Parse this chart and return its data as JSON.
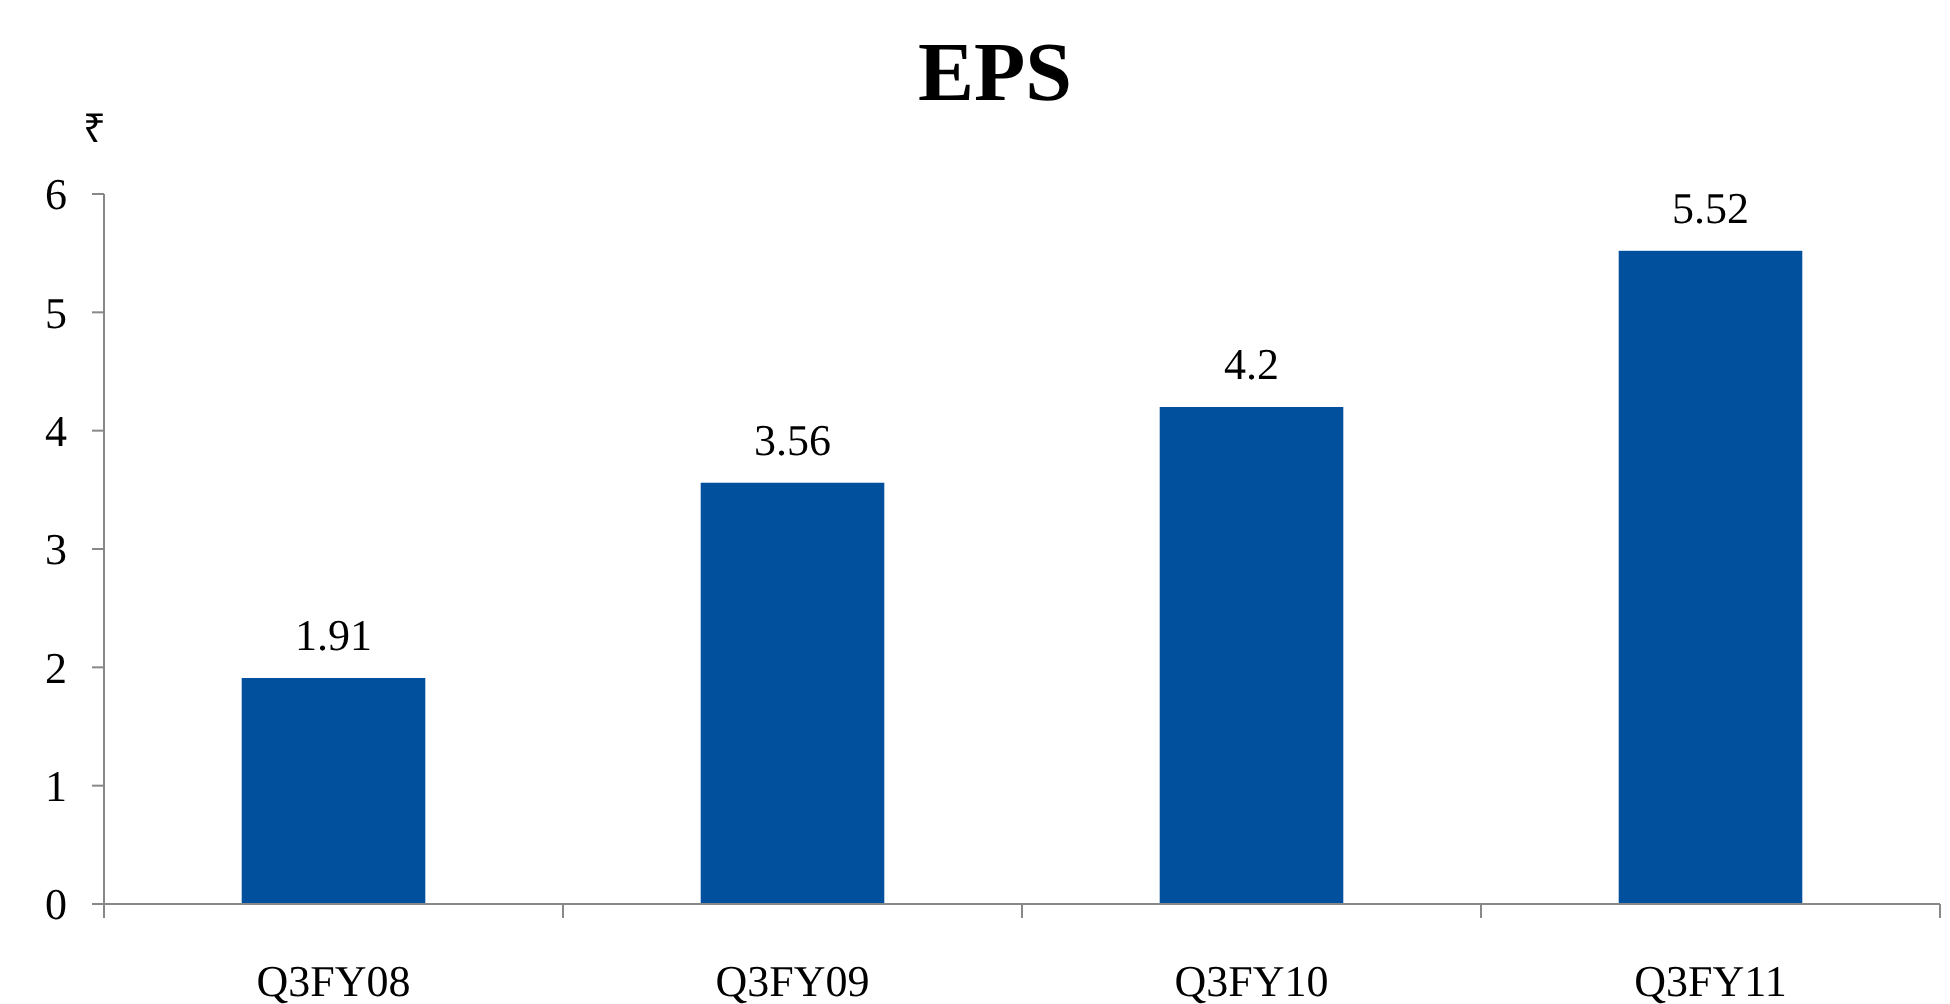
{
  "chart_data": {
    "type": "bar",
    "title": "EPS",
    "ylabel": "₹",
    "categories": [
      "Q3FY08",
      "Q3FY09",
      "Q3FY10",
      "Q3FY11"
    ],
    "values": [
      1.91,
      3.56,
      4.2,
      5.52
    ],
    "color": "#00509e",
    "ylim": [
      0,
      6
    ],
    "yticks": [
      0,
      1,
      2,
      3,
      4,
      5,
      6
    ],
    "data_labels": true
  }
}
